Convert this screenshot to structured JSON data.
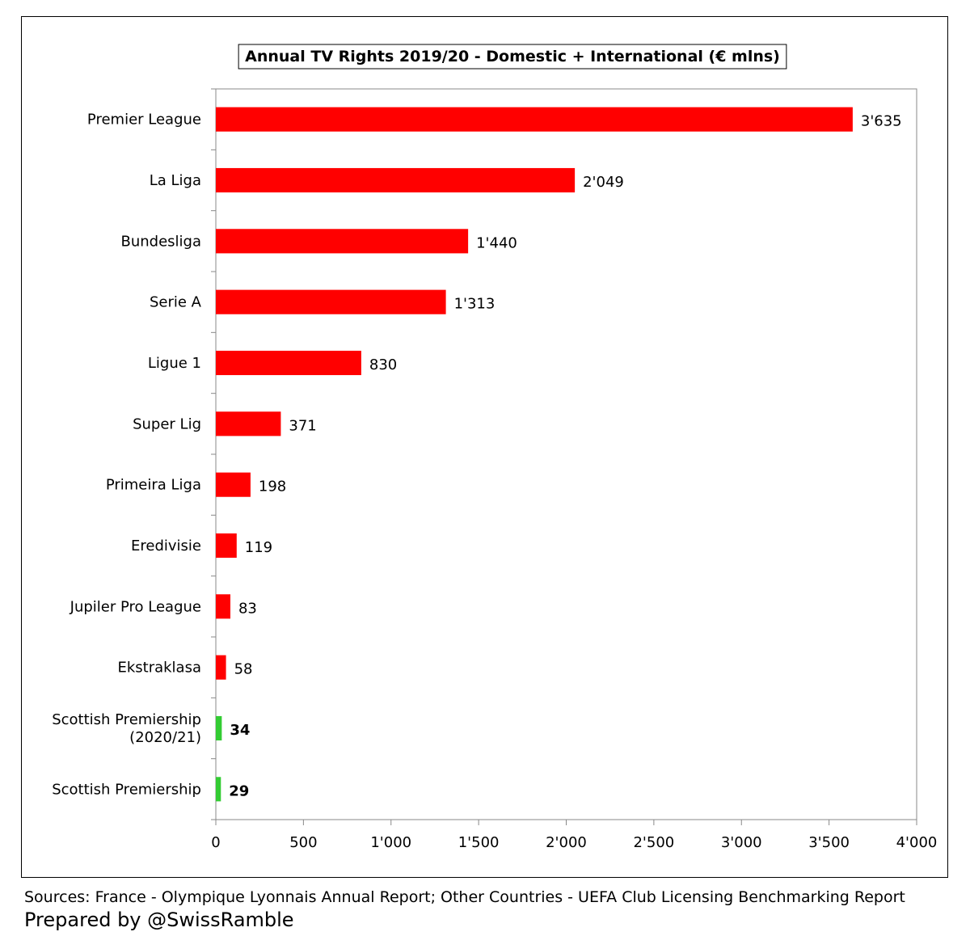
{
  "chart_data": {
    "type": "bar",
    "orientation": "horizontal",
    "title": "Annual TV Rights 2019/20 - Domestic + International (€ mlns)",
    "categories": [
      [
        "Premier League"
      ],
      [
        "La Liga"
      ],
      [
        "Bundesliga"
      ],
      [
        "Serie A"
      ],
      [
        "Ligue 1"
      ],
      [
        "Super Lig"
      ],
      [
        "Primeira Liga"
      ],
      [
        "Eredivisie"
      ],
      [
        "Jupiler Pro League"
      ],
      [
        "Ekstraklasa"
      ],
      [
        "Scottish Premiership",
        "(2020/21)"
      ],
      [
        "Scottish Premiership"
      ]
    ],
    "values": [
      3635,
      2049,
      1440,
      1313,
      830,
      371,
      198,
      119,
      83,
      58,
      34,
      29
    ],
    "value_labels": [
      "3'635",
      "2'049",
      "1'440",
      "1'313",
      "830",
      "371",
      "198",
      "119",
      "83",
      "58",
      "34",
      "29"
    ],
    "bar_colors": [
      "#ff0000",
      "#ff0000",
      "#ff0000",
      "#ff0000",
      "#ff0000",
      "#ff0000",
      "#ff0000",
      "#ff0000",
      "#ff0000",
      "#ff0000",
      "#33cc33",
      "#33cc33"
    ],
    "bold_labels": [
      false,
      false,
      false,
      false,
      false,
      false,
      false,
      false,
      false,
      false,
      true,
      true
    ],
    "xlim": [
      0,
      4000
    ],
    "xticks": [
      0,
      500,
      1000,
      1500,
      2000,
      2500,
      3000,
      3500,
      4000
    ],
    "xtick_labels": [
      "0",
      "500",
      "1'000",
      "1'500",
      "2'000",
      "2'500",
      "3'000",
      "3'500",
      "4'000"
    ],
    "grid": false,
    "legend": "none"
  },
  "footer": {
    "sources": "Sources: France - Olympique Lyonnais Annual Report; Other Countries - UEFA Club Licensing Benchmarking Report",
    "prepared_by": "Prepared by @SwissRamble"
  }
}
